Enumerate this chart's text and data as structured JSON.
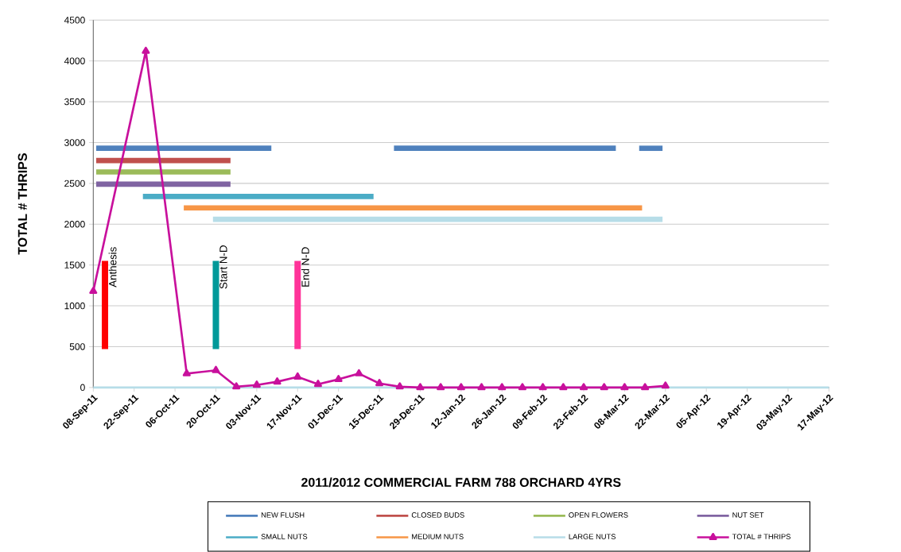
{
  "chart_data": {
    "type": "line",
    "xlabel": "2011/2012 COMMERCIAL FARM 788 ORCHARD 4YRS",
    "ylabel": "TOTAL # THRIPS",
    "xlim": [
      "2011-09-08",
      "2012-05-17"
    ],
    "xticks": [
      {
        "value": "2011-09-08",
        "label": "08-Sep-11"
      },
      {
        "value": "2011-09-22",
        "label": "22-Sep-11"
      },
      {
        "value": "2011-10-06",
        "label": "06-Oct-11"
      },
      {
        "value": "2011-10-20",
        "label": "20-Oct-11"
      },
      {
        "value": "2011-11-03",
        "label": "03-Nov-11"
      },
      {
        "value": "2011-11-17",
        "label": "17-Nov-11"
      },
      {
        "value": "2011-12-01",
        "label": "01-Dec-11"
      },
      {
        "value": "2011-12-15",
        "label": "15-Dec-11"
      },
      {
        "value": "2011-12-29",
        "label": "29-Dec-11"
      },
      {
        "value": "2012-01-12",
        "label": "12-Jan-12"
      },
      {
        "value": "2012-01-26",
        "label": "26-Jan-12"
      },
      {
        "value": "2012-02-09",
        "label": "09-Feb-12"
      },
      {
        "value": "2012-02-23",
        "label": "23-Feb-12"
      },
      {
        "value": "2012-03-08",
        "label": "08-Mar-12"
      },
      {
        "value": "2012-03-22",
        "label": "22-Mar-12"
      },
      {
        "value": "2012-04-05",
        "label": "05-Apr-12"
      },
      {
        "value": "2012-04-19",
        "label": "19-Apr-12"
      },
      {
        "value": "2012-05-03",
        "label": "03-May-12"
      },
      {
        "value": "2012-05-17",
        "label": "17-May-12"
      }
    ],
    "ylim": [
      0,
      4500
    ],
    "yticks": [
      0,
      500,
      1000,
      1500,
      2000,
      2500,
      3000,
      3500,
      4000,
      4500
    ],
    "grid": "y",
    "legend": "bottom",
    "marker": "none",
    "series": [
      {
        "name": "NEW FLUSH",
        "color": "#4f81bd",
        "x": [
          "2011-09-09",
          "2011-11-08",
          "2011-12-01",
          "2011-12-20",
          "2012-03-05",
          "2012-03-09",
          "2012-03-13",
          "2012-03-21"
        ],
        "values": [
          2930,
          2930,
          null,
          2930,
          2930,
          null,
          2930,
          2930
        ]
      },
      {
        "name": "CLOSED BUDS",
        "color": "#c0504d",
        "x": [
          "2011-09-09",
          "2011-10-25"
        ],
        "values": [
          2780,
          2780
        ]
      },
      {
        "name": "OPEN FLOWERS",
        "color": "#9bbb59",
        "x": [
          "2011-09-09",
          "2011-10-25"
        ],
        "values": [
          2640,
          2640
        ]
      },
      {
        "name": "NUT SET",
        "color": "#8064a2",
        "x": [
          "2011-09-09",
          "2011-10-25"
        ],
        "values": [
          2490,
          2490
        ]
      },
      {
        "name": "SMALL NUTS",
        "color": "#4bacc6",
        "x": [
          "2011-09-25",
          "2011-12-13"
        ],
        "values": [
          2340,
          2340
        ]
      },
      {
        "name": "MEDIUM NUTS",
        "color": "#f79646",
        "x": [
          "2011-10-09",
          "2012-03-14"
        ],
        "values": [
          2200,
          2200
        ]
      },
      {
        "name": "LARGE NUTS",
        "color": "#b7dde8",
        "x": [
          "2011-10-19",
          "2012-03-21"
        ],
        "values": [
          2060,
          2060
        ]
      },
      {
        "name": "TOTAL # THRIPS",
        "color": "#c8109c",
        "marker": "triangle",
        "x": [
          "2011-09-08",
          "2011-09-26",
          "2011-10-10",
          "2011-10-20",
          "2011-10-27",
          "2011-11-03",
          "2011-11-10",
          "2011-11-17",
          "2011-11-24",
          "2011-12-01",
          "2011-12-08",
          "2011-12-15",
          "2011-12-22",
          "2011-12-29",
          "2012-01-05",
          "2012-01-12",
          "2012-01-19",
          "2012-01-26",
          "2012-02-02",
          "2012-02-09",
          "2012-02-16",
          "2012-02-23",
          "2012-03-01",
          "2012-03-08",
          "2012-03-15",
          "2012-03-22"
        ],
        "values": [
          1180,
          4120,
          170,
          210,
          10,
          30,
          70,
          130,
          40,
          100,
          170,
          50,
          10,
          0,
          0,
          0,
          0,
          0,
          0,
          0,
          0,
          0,
          0,
          0,
          0,
          20
        ]
      },
      {
        "color": "#ff0000",
        "x": [
          "2011-09-12",
          "2011-09-12"
        ],
        "values": [
          1550,
          470
        ]
      },
      {
        "color": "#009999",
        "x": [
          "2011-10-20",
          "2011-10-20"
        ],
        "values": [
          1550,
          470
        ]
      },
      {
        "color": "#ff3399",
        "x": [
          "2011-11-17",
          "2011-11-17"
        ],
        "values": [
          1550,
          470
        ]
      }
    ],
    "ref_lines": [
      {
        "axis": "y",
        "value": 0,
        "color": "#b7dde8"
      }
    ],
    "annotations": [
      {
        "text": "Anthesis",
        "x": "2011-09-12",
        "y": 1190
      },
      {
        "text": "Start N-D",
        "x": "2011-10-20",
        "y": 1190
      },
      {
        "text": "End N-D",
        "x": "2011-11-17",
        "y": 1190
      }
    ]
  }
}
